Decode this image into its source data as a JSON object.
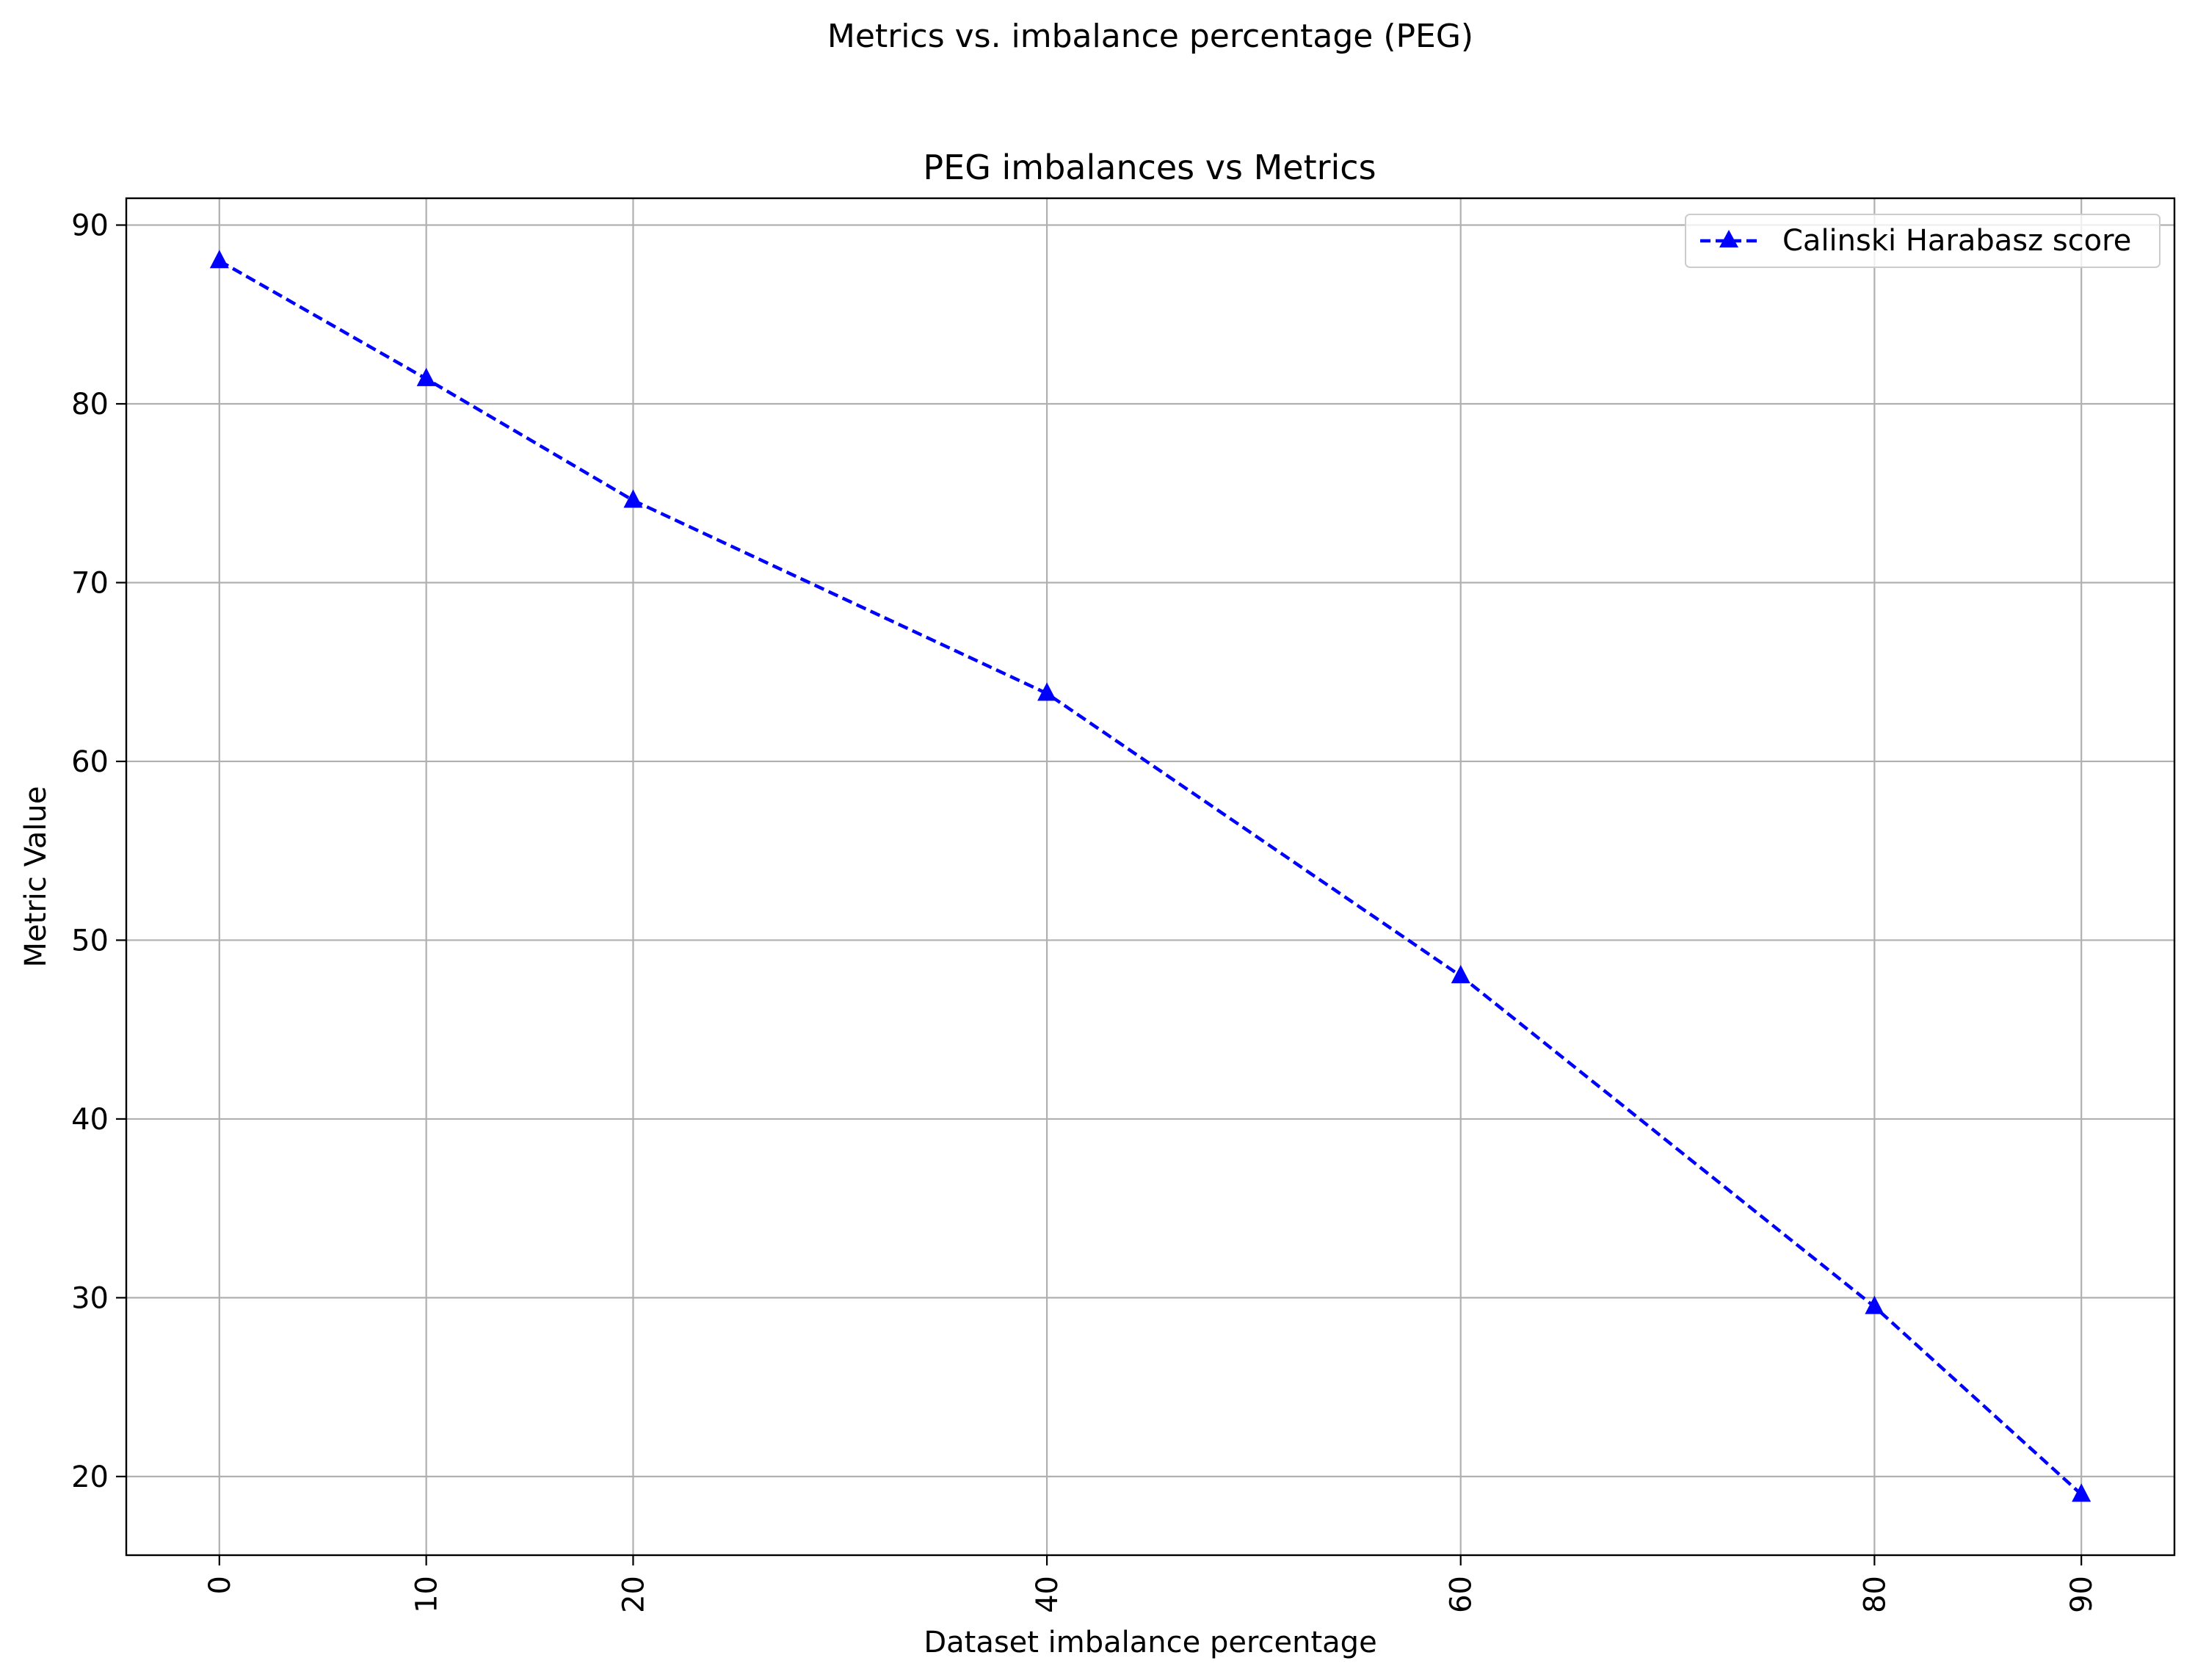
{
  "figure_title": "Metrics vs. imbalance percentage (PEG)",
  "chart_data": {
    "type": "line",
    "title": "PEG imbalances vs Metrics",
    "xlabel": "Dataset imbalance percentage",
    "ylabel": "Metric Value",
    "x": [
      0,
      10,
      20,
      40,
      60,
      80,
      90
    ],
    "x_ticks": [
      "0",
      "10",
      "20",
      "40",
      "60",
      "80",
      "90"
    ],
    "y_ticks": [
      "20",
      "30",
      "40",
      "50",
      "60",
      "70",
      "80",
      "90"
    ],
    "xlim": [
      -4.5,
      94.5
    ],
    "ylim": [
      15.6,
      91.5
    ],
    "grid": true,
    "legend_position": "top-right",
    "series": [
      {
        "name": "Calinski Harabasz score",
        "color": "#0000ff",
        "line_style": "dashed",
        "marker": "triangle-up",
        "values": [
          88.0,
          81.4,
          74.6,
          63.8,
          48.0,
          29.5,
          19.0
        ]
      }
    ]
  }
}
